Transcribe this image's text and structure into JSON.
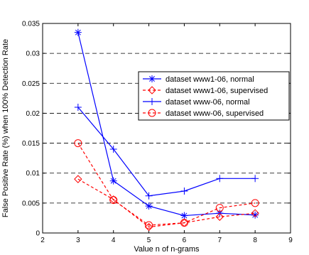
{
  "chart_data": {
    "type": "line",
    "title": "",
    "xlabel": "Value n of n-grams",
    "ylabel": "False Positive Rate (%) when 100% Detection Rate",
    "xlim": [
      2,
      9
    ],
    "ylim": [
      0,
      0.035
    ],
    "xticks": [
      "2",
      "3",
      "4",
      "5",
      "6",
      "7",
      "8",
      "9"
    ],
    "yticks": [
      "0",
      "0.005",
      "0.01",
      "0.015",
      "0.02",
      "0.025",
      "0.03",
      "0.035"
    ],
    "grid": "horizontal dashed",
    "legend_position": "upper-right",
    "x": [
      3,
      4,
      5,
      6,
      7,
      8
    ],
    "series": [
      {
        "name": "dataset www1-06, normal",
        "color": "#0000ff",
        "line": "solid",
        "marker": "asterisk",
        "values": [
          0.0335,
          0.0087,
          0.0045,
          0.0029,
          0.0033,
          0.003
        ]
      },
      {
        "name": "dataset www1-06, supervised",
        "color": "#ff0000",
        "line": "dashed",
        "marker": "diamond",
        "values": [
          0.009,
          0.0056,
          0.001,
          0.0017,
          0.0027,
          0.0033
        ]
      },
      {
        "name": "dataset www-06, normal",
        "color": "#0000ff",
        "line": "solid",
        "marker": "plus",
        "values": [
          0.021,
          0.014,
          0.0062,
          0.007,
          0.0091,
          0.0091
        ]
      },
      {
        "name": "dataset www-06, supervised",
        "color": "#ff0000",
        "line": "dashed",
        "marker": "circle",
        "values": [
          0.015,
          0.0055,
          0.0013,
          0.0017,
          0.0042,
          0.005
        ]
      }
    ]
  }
}
